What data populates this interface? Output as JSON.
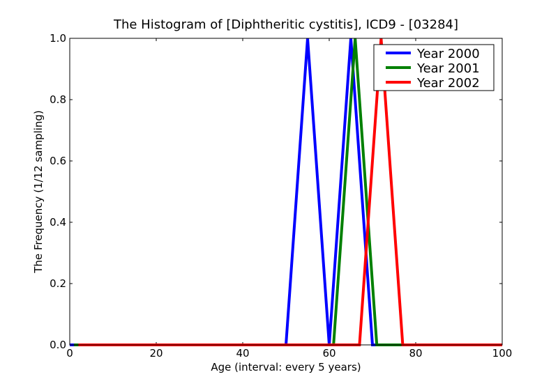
{
  "chart_data": {
    "type": "line",
    "title": "The Histogram of [Diphtheritic cystitis], ICD9 - [03284]",
    "xlabel": "Age (interval: every 5 years)",
    "ylabel": "The Frequency (1/12 sampling)",
    "xlim": [
      0,
      100
    ],
    "ylim": [
      0,
      1.0
    ],
    "xticks": [
      "0",
      "20",
      "40",
      "60",
      "80",
      "100"
    ],
    "yticks": [
      "0.0",
      "0.2",
      "0.4",
      "0.6",
      "0.8",
      "1.0"
    ],
    "grid": false,
    "legend_placement": "top-right",
    "series": [
      {
        "name": "Year 2000",
        "color": "#0000ff",
        "x": [
          0,
          5,
          10,
          15,
          20,
          25,
          30,
          35,
          40,
          45,
          50,
          55,
          60,
          65,
          70,
          75,
          80,
          85,
          90,
          95,
          100
        ],
        "y": [
          0,
          0,
          0,
          0,
          0,
          0,
          0,
          0,
          0,
          0,
          0,
          1,
          0,
          1,
          0,
          0,
          0,
          0,
          0,
          0,
          0
        ]
      },
      {
        "name": "Year 2001",
        "color": "#008000",
        "x": [
          1,
          6,
          11,
          16,
          21,
          26,
          31,
          36,
          41,
          46,
          51,
          56,
          61,
          66,
          71,
          76,
          81,
          86,
          91,
          96
        ],
        "y": [
          0,
          0,
          0,
          0,
          0,
          0,
          0,
          0,
          0,
          0,
          0,
          0,
          0,
          1,
          0,
          0,
          0,
          0,
          0,
          0
        ]
      },
      {
        "name": "Year 2002",
        "color": "#ff0000",
        "x": [
          2,
          7,
          12,
          17,
          22,
          27,
          32,
          37,
          42,
          47,
          52,
          57,
          62,
          67,
          72,
          77,
          82,
          87,
          92,
          97,
          100
        ],
        "y": [
          0,
          0,
          0,
          0,
          0,
          0,
          0,
          0,
          0,
          0,
          0,
          0,
          0,
          0,
          1,
          0,
          0,
          0,
          0,
          0,
          0
        ]
      }
    ]
  }
}
